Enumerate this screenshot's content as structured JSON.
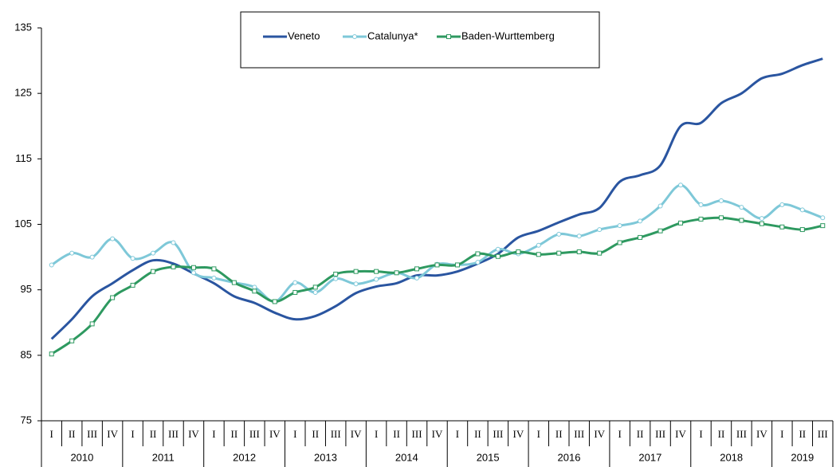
{
  "chart_data": {
    "type": "line",
    "categories": [
      "I",
      "II",
      "III",
      "IV",
      "I",
      "II",
      "III",
      "IV",
      "I",
      "II",
      "III",
      "IV",
      "I",
      "II",
      "III",
      "IV",
      "I",
      "II",
      "III",
      "IV",
      "I",
      "II",
      "III",
      "IV",
      "I",
      "II",
      "III",
      "IV",
      "I",
      "II",
      "III",
      "IV",
      "I",
      "II",
      "III",
      "IV",
      "I",
      "II",
      "III"
    ],
    "years": [
      "2010",
      "2011",
      "2012",
      "2013",
      "2014",
      "2015",
      "2016",
      "2017",
      "2018",
      "2019"
    ],
    "series": [
      {
        "name": "Veneto",
        "color": "#2a55a0",
        "marker": null,
        "values": [
          87.5,
          90.5,
          94,
          96,
          98,
          99.5,
          99,
          97.5,
          96,
          94,
          93,
          91.5,
          90.5,
          91,
          92.5,
          94.5,
          95.5,
          96,
          97.2,
          97.2,
          97.8,
          99,
          100.5,
          103,
          104,
          105.3,
          106.5,
          107.5,
          111.5,
          112.5,
          114,
          120,
          120.5,
          123.5,
          125,
          127.3,
          128,
          129.3,
          130.3
        ]
      },
      {
        "name": "Catalunya*",
        "color": "#7ec8d8",
        "marker": "circle",
        "values": [
          98.8,
          100.6,
          100,
          102.8,
          99.8,
          100.6,
          102.2,
          97.6,
          96.8,
          96.1,
          95.4,
          93.2,
          96.1,
          94.6,
          96.7,
          95.9,
          96.6,
          97.6,
          96.8,
          98.9,
          98.8,
          99.2,
          101.2,
          100.5,
          101.8,
          103.5,
          103.2,
          104.2,
          104.8,
          105.5,
          107.8,
          111,
          108,
          108.6,
          107.6,
          105.9,
          108,
          107.2,
          106
        ]
      },
      {
        "name": "Baden-Wurttemberg",
        "color": "#2e9960",
        "marker": "square",
        "values": [
          85.2,
          87.2,
          89.8,
          93.8,
          95.7,
          97.8,
          98.5,
          98.4,
          98.2,
          96.1,
          94.8,
          93.2,
          94.6,
          95.4,
          97.4,
          97.8,
          97.8,
          97.6,
          98.2,
          98.8,
          98.8,
          100.5,
          100.1,
          100.8,
          100.4,
          100.6,
          100.8,
          100.6,
          102.2,
          103,
          104,
          105.2,
          105.8,
          106,
          105.6,
          105.1,
          104.6,
          104.2,
          104.8
        ]
      }
    ],
    "ylim": [
      75,
      135
    ],
    "yticks": [
      75,
      85,
      95,
      105,
      115,
      125,
      135
    ],
    "grid": false,
    "legend": "top"
  }
}
